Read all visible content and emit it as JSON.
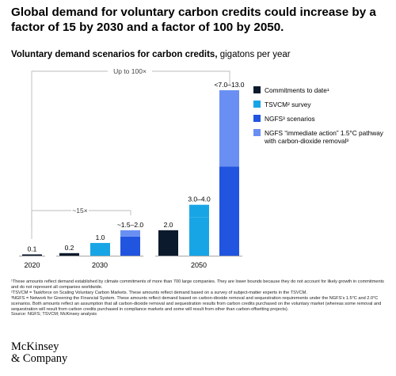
{
  "headline": "Global demand for voluntary carbon credits could increase by a factor of 15 by 2030 and a factor of 100 by 2050.",
  "subtitle_bold": "Voluntary demand scenarios for carbon credits,",
  "subtitle_rest": " gigatons per year",
  "brackets": {
    "top_label": "Up to 100×",
    "mid_label": "~15×"
  },
  "colors": {
    "commitments": "#0b1a2c",
    "tsvcm": "#18a5e6",
    "ngfs": "#2155e0",
    "ngfs_immediate": "#6a8ff2",
    "bracket": "#bbbbbb",
    "baseline": "#888888"
  },
  "chart_data": {
    "type": "bar",
    "layout_note_free": true,
    "ylim": [
      0,
      13.0
    ],
    "groups": [
      {
        "label": "2020",
        "bars": [
          {
            "series": "commitments",
            "value": 0.1,
            "label": "0.1"
          }
        ]
      },
      {
        "label": "2030",
        "bars": [
          {
            "series": "commitments",
            "value": 0.2,
            "label": "0.2"
          },
          {
            "series": "tsvcm",
            "value": 1.0,
            "label": "1.0"
          },
          {
            "series": "ngfs",
            "value": 1.5,
            "stack": 0.5,
            "label": "~1.5–2.0"
          }
        ]
      },
      {
        "label": "2050",
        "bars": [
          {
            "series": "commitments",
            "value": 2.0,
            "label": "2.0"
          },
          {
            "series": "tsvcm",
            "value": 3.0,
            "stack": 1.0,
            "label": "3.0–4.0"
          },
          {
            "series": "ngfs",
            "value": 7.0,
            "stack": 6.0,
            "label": "<7.0–13.0"
          }
        ]
      }
    ],
    "legend": [
      {
        "series": "commitments",
        "label": "Commitments to date¹"
      },
      {
        "series": "tsvcm",
        "label": "TSVCM² survey"
      },
      {
        "series": "ngfs",
        "label": "NGFS³ scenarios"
      },
      {
        "series": "ngfs_immediate",
        "label": "NGFS “immediate action” 1.5°C pathway with carbon-dioxide removal³"
      }
    ],
    "legend_position": "top-right"
  },
  "footnotes": [
    "¹These amounts reflect demand established by climate commitments of more than 700 large companies. They are lower bounds because they do not account for likely growth in commitments and do not represent all companies worldwide.",
    "²TSVCM = Taskforce on Scaling Voluntary Carbon Markets. These amounts reflect demand based on a survey of subject-matter experts in the TSVCM.",
    "³NGFS = Network for Greening the Financial System. These amounts reflect demand based on carbon-dioxide removal and sequestration requirements under the NGFS’s 1.5°C and 2.0°C scenarios. Both amounts reflect an assumption that all carbon-dioxide removal and sequestration results from carbon credits purchased on the voluntary market (whereas some removal and sequestration will result from carbon credits purchased in compliance markets and some will result from other than carbon-offsetting projects).",
    "Source: NGFS; TSVCM; McKinsey analysis"
  ],
  "logo": {
    "line1": "McKinsey",
    "line2": "& Company"
  }
}
